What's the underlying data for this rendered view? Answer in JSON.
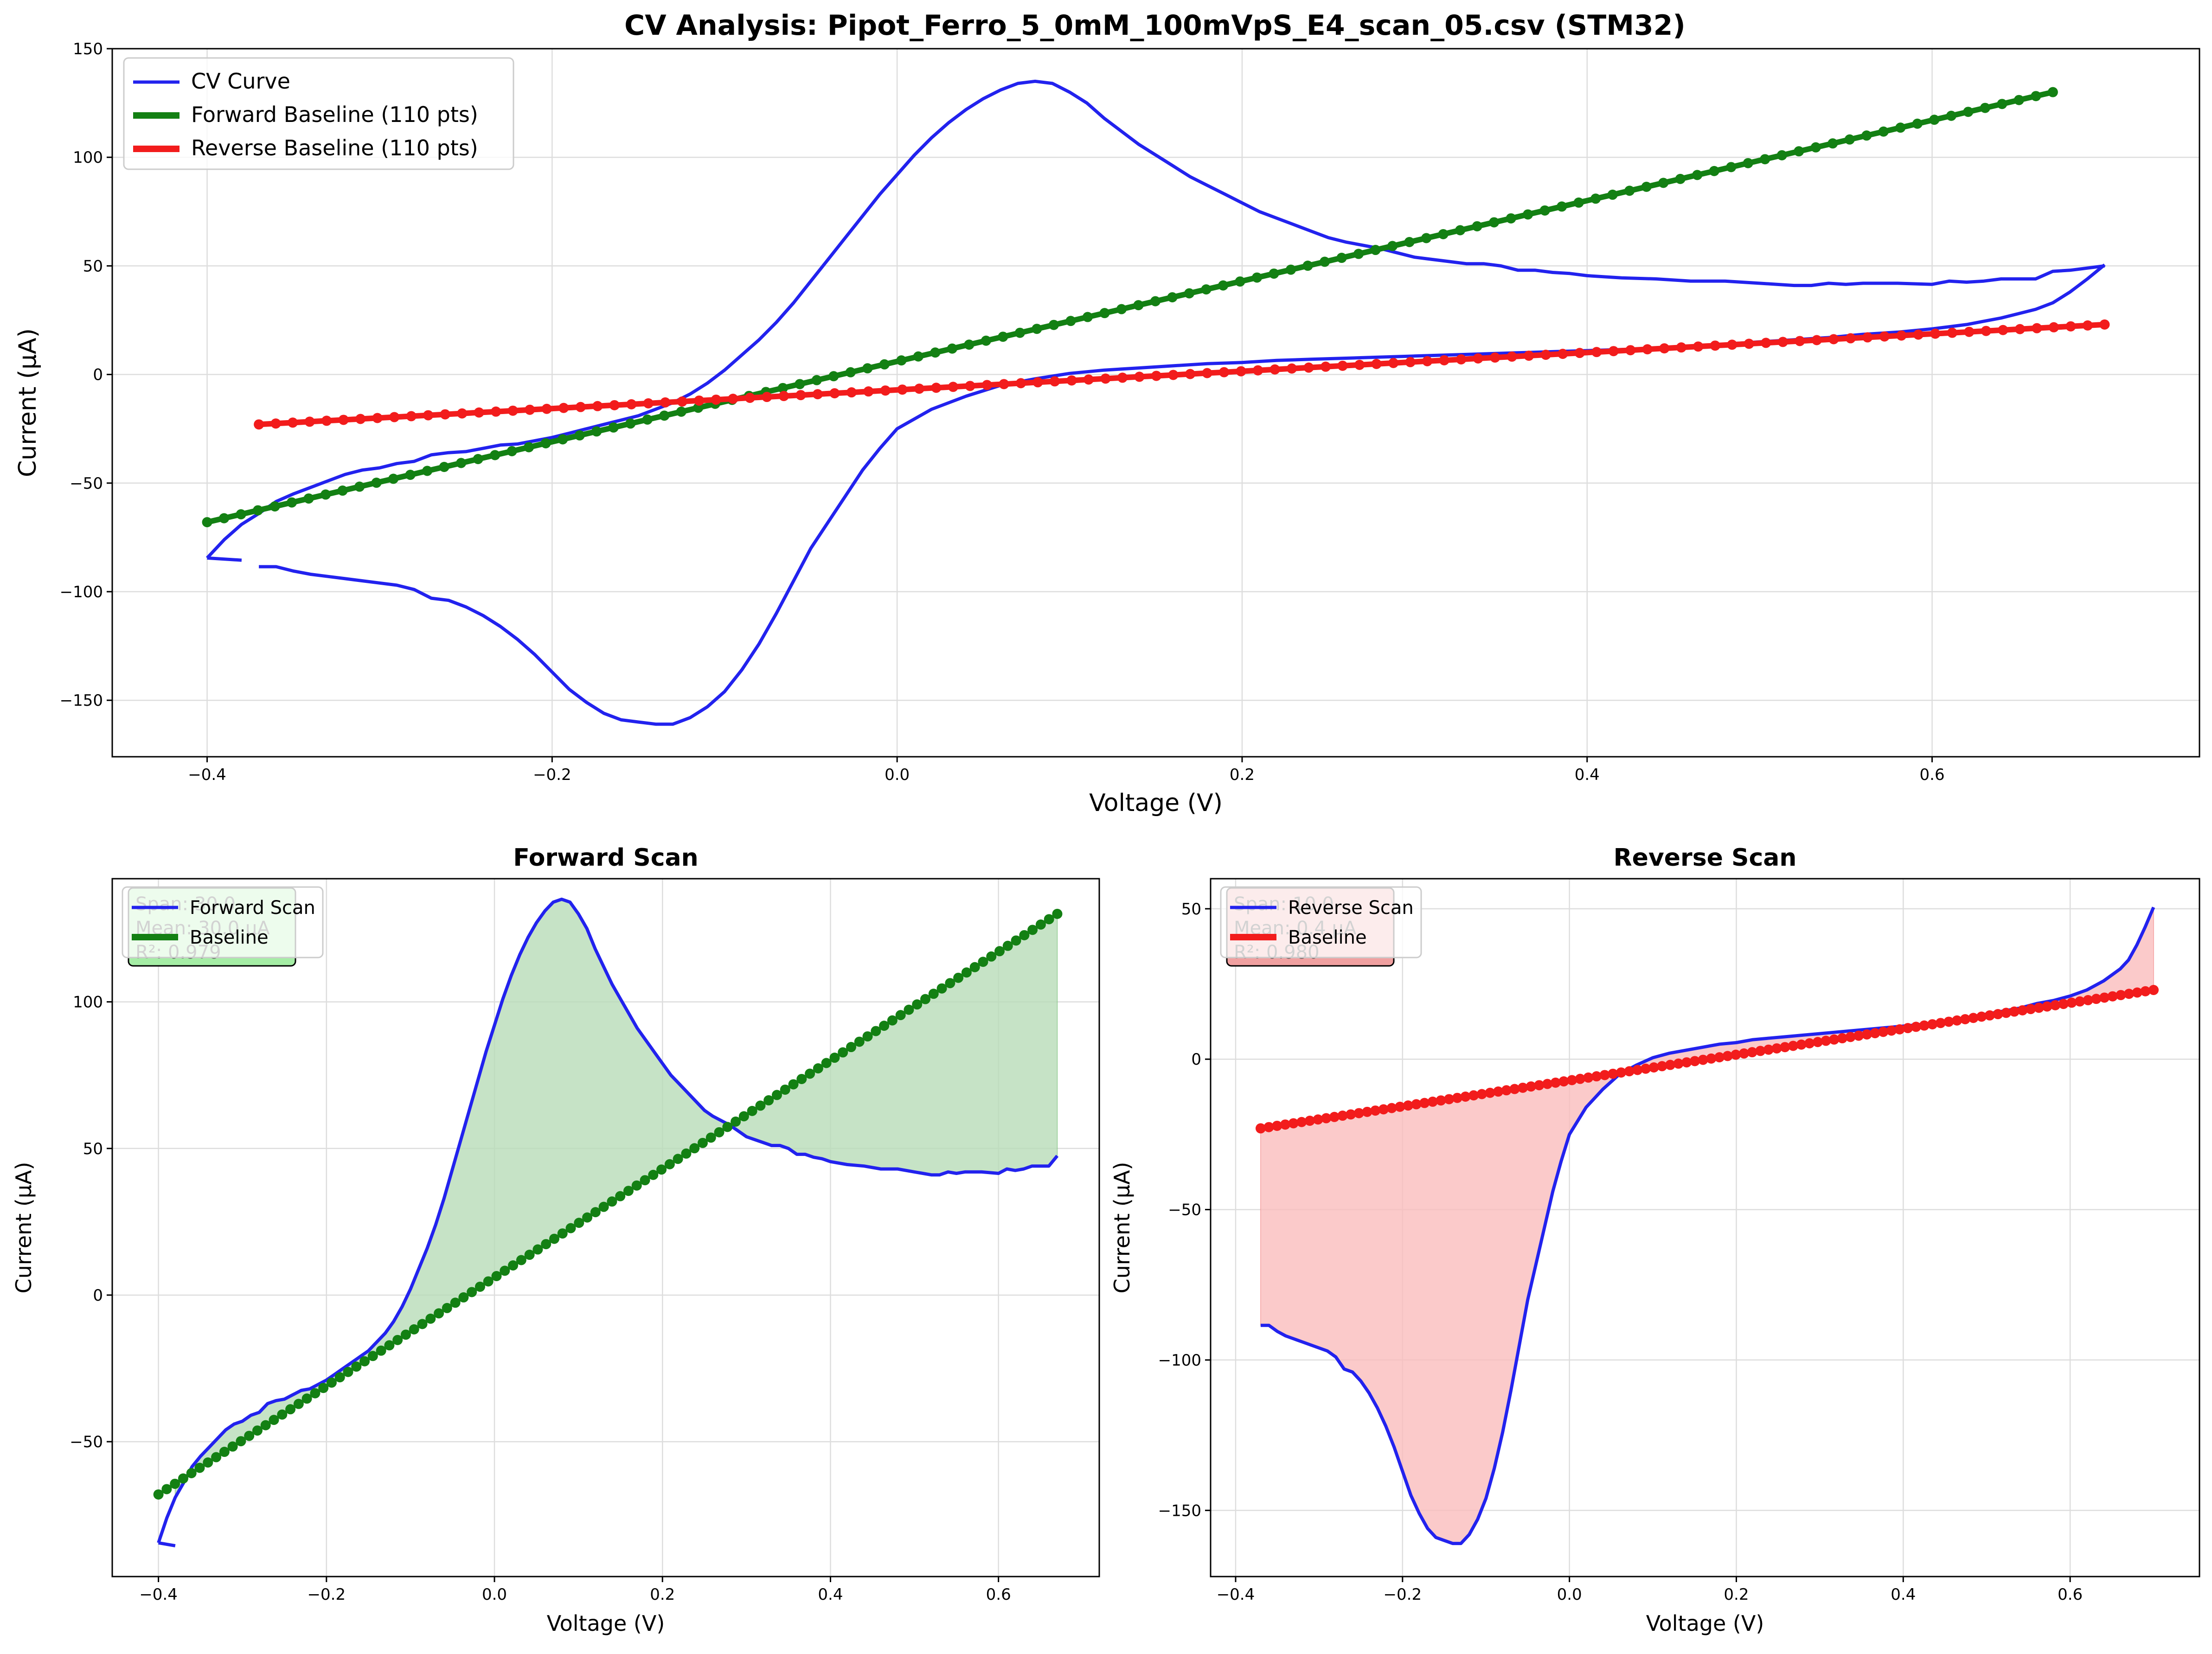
{
  "figure": {
    "main_title": "CV Analysis: Pipot_Ferro_5_0mM_100mVpS_E4_scan_05.csv (STM32)"
  },
  "colors": {
    "cv": "#2222ee",
    "forward": "#138013",
    "reverse": "#f21c1c",
    "forward_fill": "#b7dcb7",
    "reverse_fill": "#fbbcbc",
    "forward_box": "#a5eda5",
    "reverse_box": "#f0a0a0",
    "grid": "#dddddd",
    "axis": "#000000"
  },
  "chart_data": [
    {
      "id": "cv",
      "type": "line",
      "title": "",
      "xlabel": "Voltage (V)",
      "ylabel": "Current (µA)",
      "xlim": [
        -0.455,
        0.755
      ],
      "ylim": [
        -176,
        150
      ],
      "xticks": [
        -0.4,
        -0.2,
        0.0,
        0.2,
        0.4,
        0.6
      ],
      "xtick_labels": [
        "−0.4",
        "−0.2",
        "0.0",
        "0.2",
        "0.4",
        "0.6"
      ],
      "yticks": [
        -150,
        -100,
        -50,
        0,
        50,
        100,
        150
      ],
      "ytick_labels": [
        "−150",
        "−100",
        "−50",
        "0",
        "50",
        "100",
        "150"
      ],
      "legend": [
        "CV Curve",
        "Forward Baseline (110 pts)",
        "Reverse Baseline (110 pts)"
      ],
      "legend_position": "top-left"
    },
    {
      "id": "forward",
      "type": "line",
      "title": "Forward Scan",
      "xlabel": "Voltage (V)",
      "ylabel": "Current (µA)",
      "xlim": [
        -0.455,
        0.72
      ],
      "ylim": [
        -96,
        142
      ],
      "xticks": [
        -0.4,
        -0.2,
        0.0,
        0.2,
        0.4,
        0.6
      ],
      "xtick_labels": [
        "−0.4",
        "−0.2",
        "0.0",
        "0.2",
        "0.4",
        "0.6"
      ],
      "yticks": [
        -50,
        0,
        50,
        100
      ],
      "ytick_labels": [
        "−50",
        "0",
        "50",
        "100"
      ],
      "legend": [
        "Forward Scan",
        "Baseline"
      ],
      "stats": [
        "Span: 30.0",
        "Mean: 30.0 µA",
        "R²: 0.979"
      ]
    },
    {
      "id": "reverse",
      "type": "line",
      "title": "Reverse Scan",
      "xlabel": "Voltage (V)",
      "ylabel": "Current (µA)",
      "xlim": [
        -0.43,
        0.755
      ],
      "ylim": [
        -172,
        60
      ],
      "xticks": [
        -0.4,
        -0.2,
        0.0,
        0.2,
        0.4,
        0.6
      ],
      "xtick_labels": [
        "−0.4",
        "−0.2",
        "0.0",
        "0.2",
        "0.4",
        "0.6"
      ],
      "yticks": [
        -150,
        -100,
        -50,
        0,
        50
      ],
      "ytick_labels": [
        "−150",
        "−100",
        "−50",
        "0",
        "50"
      ],
      "legend": [
        "Reverse Scan",
        "Baseline"
      ],
      "stats": [
        "Span: 10.0",
        "Mean: 0.4 µA",
        "R²: 0.980"
      ]
    }
  ],
  "series": {
    "forward_curve": [
      [
        -0.4,
        -84.5
      ],
      [
        -0.39,
        -76
      ],
      [
        -0.38,
        -69
      ],
      [
        -0.37,
        -64
      ],
      [
        -0.36,
        -58.5
      ],
      [
        -0.35,
        -55
      ],
      [
        -0.34,
        -52
      ],
      [
        -0.33,
        -49
      ],
      [
        -0.32,
        -46
      ],
      [
        -0.31,
        -44
      ],
      [
        -0.3,
        -43
      ],
      [
        -0.29,
        -41
      ],
      [
        -0.28,
        -40
      ],
      [
        -0.27,
        -37
      ],
      [
        -0.26,
        -36
      ],
      [
        -0.25,
        -35.5
      ],
      [
        -0.24,
        -34
      ],
      [
        -0.23,
        -32.5
      ],
      [
        -0.22,
        -32
      ],
      [
        -0.21,
        -30.5
      ],
      [
        -0.2,
        -29
      ],
      [
        -0.19,
        -27
      ],
      [
        -0.18,
        -25
      ],
      [
        -0.17,
        -23
      ],
      [
        -0.16,
        -21
      ],
      [
        -0.15,
        -19
      ],
      [
        -0.14,
        -16
      ],
      [
        -0.13,
        -13
      ],
      [
        -0.12,
        -9
      ],
      [
        -0.11,
        -4
      ],
      [
        -0.1,
        2
      ],
      [
        -0.09,
        9
      ],
      [
        -0.08,
        16
      ],
      [
        -0.07,
        24
      ],
      [
        -0.06,
        33
      ],
      [
        -0.05,
        43
      ],
      [
        -0.04,
        53
      ],
      [
        -0.03,
        63
      ],
      [
        -0.02,
        73
      ],
      [
        -0.01,
        83
      ],
      [
        0.0,
        92
      ],
      [
        0.01,
        101
      ],
      [
        0.02,
        109
      ],
      [
        0.03,
        116
      ],
      [
        0.04,
        122
      ],
      [
        0.05,
        127
      ],
      [
        0.06,
        131
      ],
      [
        0.07,
        134
      ],
      [
        0.08,
        135
      ],
      [
        0.09,
        134
      ],
      [
        0.1,
        130
      ],
      [
        0.11,
        125
      ],
      [
        0.12,
        118
      ],
      [
        0.13,
        112
      ],
      [
        0.14,
        106
      ],
      [
        0.15,
        101
      ],
      [
        0.16,
        96
      ],
      [
        0.17,
        91
      ],
      [
        0.18,
        87
      ],
      [
        0.19,
        83
      ],
      [
        0.2,
        79
      ],
      [
        0.21,
        75
      ],
      [
        0.22,
        72
      ],
      [
        0.23,
        69
      ],
      [
        0.24,
        66
      ],
      [
        0.25,
        63
      ],
      [
        0.26,
        61
      ],
      [
        0.27,
        59.5
      ],
      [
        0.28,
        58
      ],
      [
        0.29,
        56
      ],
      [
        0.3,
        54
      ],
      [
        0.31,
        53
      ],
      [
        0.32,
        52
      ],
      [
        0.33,
        51
      ],
      [
        0.34,
        51
      ],
      [
        0.35,
        50
      ],
      [
        0.36,
        48
      ],
      [
        0.37,
        48
      ],
      [
        0.38,
        47
      ],
      [
        0.39,
        46.5
      ],
      [
        0.4,
        45.5
      ],
      [
        0.42,
        44.5
      ],
      [
        0.44,
        44
      ],
      [
        0.46,
        43
      ],
      [
        0.48,
        43
      ],
      [
        0.5,
        42
      ],
      [
        0.51,
        41.5
      ],
      [
        0.52,
        41
      ],
      [
        0.53,
        41
      ],
      [
        0.54,
        42
      ],
      [
        0.55,
        41.5
      ],
      [
        0.56,
        42
      ],
      [
        0.58,
        42
      ],
      [
        0.6,
        41.5
      ],
      [
        0.61,
        43
      ],
      [
        0.62,
        42.5
      ],
      [
        0.63,
        43
      ],
      [
        0.64,
        44
      ],
      [
        0.66,
        44
      ],
      [
        0.67,
        47.5
      ]
    ],
    "cv_tail": [
      [
        0.67,
        47.5
      ],
      [
        0.68,
        48
      ],
      [
        0.69,
        49
      ],
      [
        0.7,
        50
      ]
    ],
    "reverse_curve": [
      [
        0.7,
        50.5
      ],
      [
        0.69,
        44
      ],
      [
        0.68,
        38
      ],
      [
        0.67,
        33
      ],
      [
        0.66,
        30
      ],
      [
        0.65,
        28
      ],
      [
        0.64,
        26
      ],
      [
        0.63,
        24.5
      ],
      [
        0.62,
        23
      ],
      [
        0.61,
        22
      ],
      [
        0.6,
        21
      ],
      [
        0.58,
        19.5
      ],
      [
        0.56,
        18.5
      ],
      [
        0.54,
        17
      ],
      [
        0.52,
        16
      ],
      [
        0.5,
        15
      ],
      [
        0.48,
        14
      ],
      [
        0.46,
        13
      ],
      [
        0.44,
        12
      ],
      [
        0.42,
        11.5
      ],
      [
        0.4,
        11
      ],
      [
        0.38,
        10.5
      ],
      [
        0.36,
        10
      ],
      [
        0.34,
        9.5
      ],
      [
        0.32,
        9
      ],
      [
        0.3,
        8.5
      ],
      [
        0.28,
        8
      ],
      [
        0.26,
        7.5
      ],
      [
        0.24,
        7
      ],
      [
        0.22,
        6.5
      ],
      [
        0.2,
        5.5
      ],
      [
        0.18,
        5
      ],
      [
        0.16,
        4
      ],
      [
        0.14,
        3
      ],
      [
        0.12,
        2
      ],
      [
        0.1,
        0.5
      ],
      [
        0.08,
        -2
      ],
      [
        0.06,
        -5
      ],
      [
        0.04,
        -10
      ],
      [
        0.02,
        -16
      ],
      [
        0.0,
        -25
      ],
      [
        -0.01,
        -34
      ],
      [
        -0.02,
        -44
      ],
      [
        -0.03,
        -56
      ],
      [
        -0.04,
        -68
      ],
      [
        -0.05,
        -80
      ],
      [
        -0.06,
        -95
      ],
      [
        -0.07,
        -110
      ],
      [
        -0.08,
        -124
      ],
      [
        -0.09,
        -136
      ],
      [
        -0.1,
        -146
      ],
      [
        -0.11,
        -153
      ],
      [
        -0.12,
        -158
      ],
      [
        -0.13,
        -161
      ],
      [
        -0.14,
        -161
      ],
      [
        -0.15,
        -160
      ],
      [
        -0.16,
        -159
      ],
      [
        -0.17,
        -156
      ],
      [
        -0.18,
        -151
      ],
      [
        -0.19,
        -145
      ],
      [
        -0.2,
        -137
      ],
      [
        -0.21,
        -129
      ],
      [
        -0.22,
        -122
      ],
      [
        -0.23,
        -116
      ],
      [
        -0.24,
        -111
      ],
      [
        -0.25,
        -107
      ],
      [
        -0.26,
        -104
      ],
      [
        -0.27,
        -103
      ],
      [
        -0.28,
        -99
      ],
      [
        -0.29,
        -97
      ],
      [
        -0.3,
        -96
      ],
      [
        -0.31,
        -95
      ],
      [
        -0.32,
        -94
      ],
      [
        -0.33,
        -93
      ],
      [
        -0.34,
        -92
      ],
      [
        -0.35,
        -90.5
      ],
      [
        -0.36,
        -88.5
      ],
      [
        -0.37,
        -88.5
      ]
    ],
    "cv_head": [
      [
        -0.4,
        -84.5
      ],
      [
        -0.38,
        -85.5
      ]
    ],
    "forward_baseline": {
      "x0": -0.4,
      "y0": -68,
      "x1": 0.67,
      "y1": 130,
      "count": 110
    },
    "reverse_baseline": {
      "x0": -0.37,
      "y0": -23,
      "x1": 0.7,
      "y1": 23,
      "count": 110
    }
  }
}
